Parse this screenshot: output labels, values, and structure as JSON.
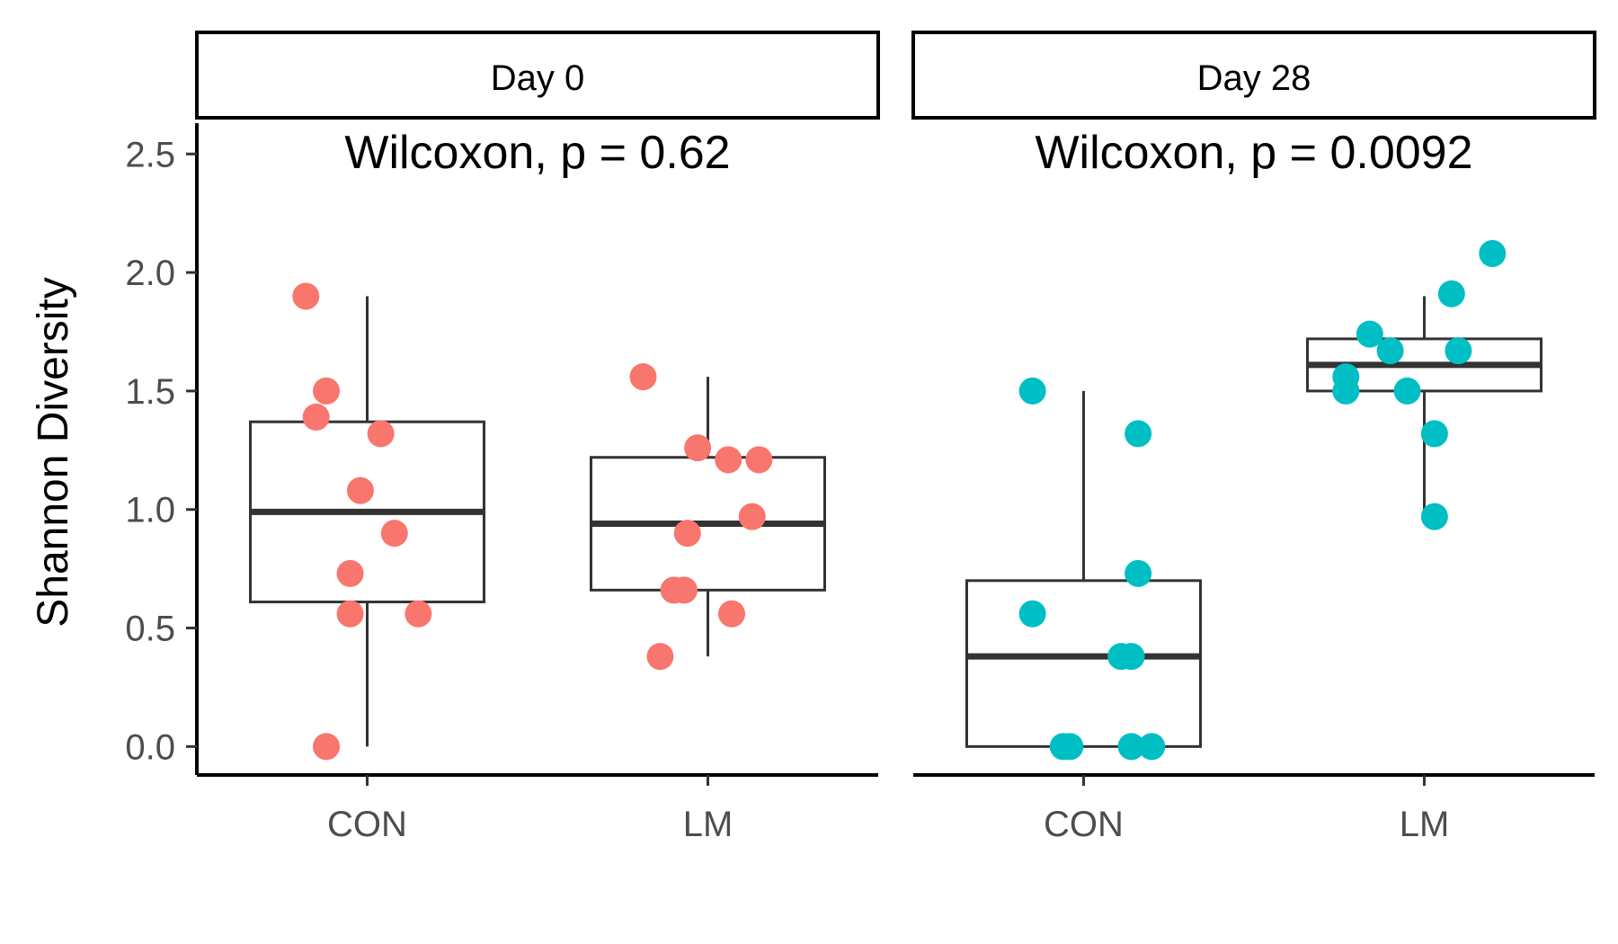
{
  "chart_data": {
    "type": "boxplot",
    "ylabel": "Shannon Diversity",
    "xlabel": "",
    "ylim": [
      -0.12,
      2.63
    ],
    "yticks": [
      "0.0",
      "0.5",
      "1.0",
      "1.5",
      "2.0",
      "2.5"
    ],
    "categories": [
      "CON",
      "LM"
    ],
    "panels": [
      {
        "strip": "Day 0",
        "annotation": "Wilcoxon, p = 0.62",
        "color": "#F8766D",
        "groups": [
          {
            "category": "CON",
            "box": {
              "q1": 0.61,
              "median": 0.99,
              "q3": 1.37,
              "whisker_low": 0.0,
              "whisker_high": 1.9
            },
            "points": [
              1.9,
              1.5,
              1.39,
              1.32,
              1.08,
              0.9,
              0.73,
              0.56,
              0.56,
              0.0
            ],
            "jitter": [
              -0.18,
              -0.12,
              -0.15,
              0.04,
              -0.02,
              0.08,
              -0.05,
              -0.05,
              0.15,
              -0.12
            ]
          },
          {
            "category": "LM",
            "box": {
              "q1": 0.66,
              "median": 0.94,
              "q3": 1.22,
              "whisker_low": 0.38,
              "whisker_high": 1.56
            },
            "points": [
              1.56,
              1.26,
              1.21,
              1.21,
              0.97,
              0.9,
              0.66,
              0.66,
              0.56,
              0.38
            ],
            "jitter": [
              -0.19,
              -0.03,
              0.06,
              0.15,
              0.13,
              -0.06,
              -0.1,
              -0.07,
              0.07,
              -0.14
            ]
          }
        ]
      },
      {
        "strip": "Day 28",
        "annotation": "Wilcoxon, p = 0.0092",
        "color": "#00BFC4",
        "groups": [
          {
            "category": "CON",
            "box": {
              "q1": 0.0,
              "median": 0.38,
              "q3": 0.7,
              "whisker_low": 0.0,
              "whisker_high": 1.5
            },
            "points": [
              1.5,
              1.32,
              0.73,
              0.56,
              0.38,
              0.38,
              0.0,
              0.0,
              0.0,
              0.0
            ],
            "jitter": [
              -0.15,
              0.16,
              0.16,
              -0.15,
              0.11,
              0.14,
              -0.06,
              -0.04,
              0.14,
              0.2
            ]
          },
          {
            "category": "LM",
            "box": {
              "q1": 1.5,
              "median": 1.61,
              "q3": 1.72,
              "whisker_low": 0.97,
              "whisker_high": 1.9
            },
            "points": [
              2.08,
              1.91,
              1.74,
              1.67,
              1.67,
              1.56,
              1.5,
              1.5,
              1.32,
              0.97
            ],
            "jitter": [
              0.2,
              0.08,
              -0.16,
              -0.1,
              0.1,
              -0.23,
              -0.23,
              -0.05,
              0.03,
              0.03
            ]
          }
        ]
      }
    ]
  }
}
